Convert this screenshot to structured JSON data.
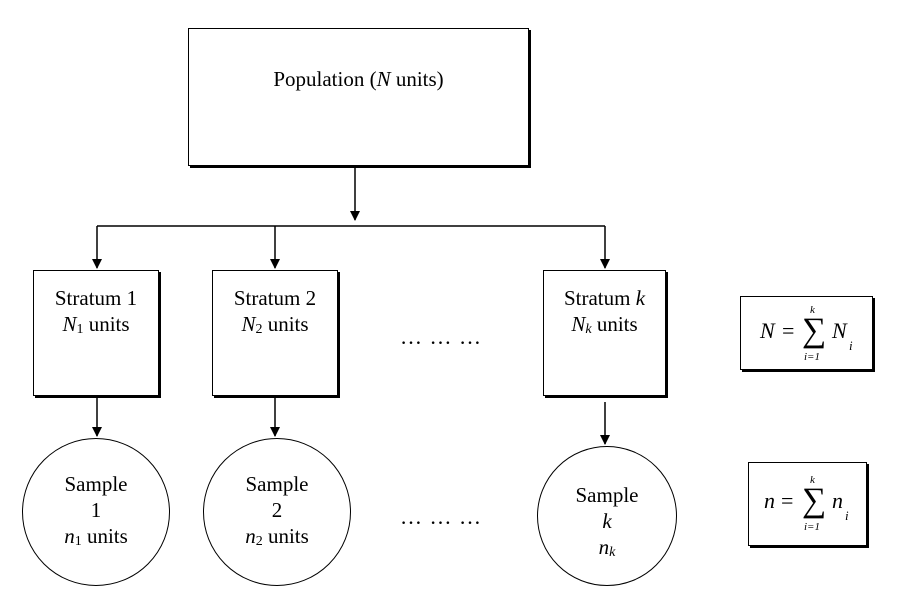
{
  "population": {
    "label": "Population (",
    "var": "N",
    "suffix": " units)"
  },
  "strata": [
    {
      "title": "Stratum 1",
      "var": "N",
      "sub": "1",
      "sub_italic": false,
      "unit": " units"
    },
    {
      "title": "Stratum 2",
      "var": "N",
      "sub": "2",
      "sub_italic": false,
      "unit": " units"
    },
    {
      "title": "Stratum ",
      "title_var": "k",
      "var": "N",
      "sub": "k",
      "sub_italic": true,
      "unit": " units"
    }
  ],
  "samples": [
    {
      "line1": "Sample",
      "line2": "1",
      "var": "n",
      "sub": "1",
      "unit": " units"
    },
    {
      "line1": "Sample",
      "line2": "2",
      "var": "n",
      "sub": "2",
      "unit": " units"
    },
    {
      "line1": "Sample",
      "line2": "k",
      "var": "n",
      "sub": "k",
      "unit": ""
    }
  ],
  "ellipsis": "… … …",
  "formulas": {
    "population_total": {
      "lhs": "N",
      "eq": "=",
      "upper": "k",
      "lower": "i=1",
      "term": "N",
      "idx": "i"
    },
    "sample_total": {
      "lhs": "n",
      "eq": "=",
      "upper": "k",
      "lower": "i=1",
      "term": "n",
      "idx": "i"
    }
  }
}
